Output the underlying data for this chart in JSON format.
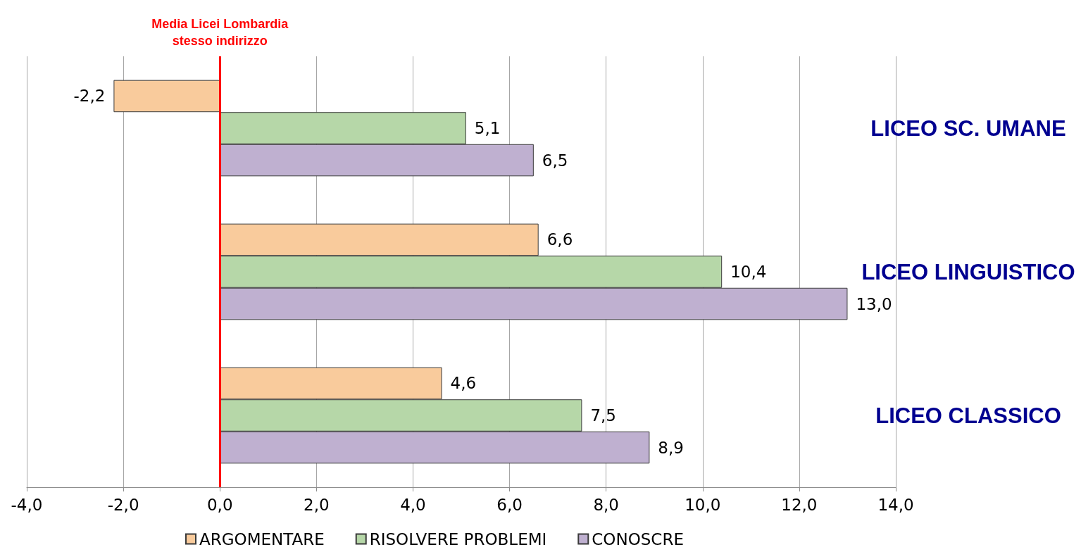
{
  "chart_data": {
    "type": "bar",
    "orientation": "horizontal",
    "categories": [
      "LICEO SC. UMANE",
      "LICEO LINGUISTICO",
      "LICEO CLASSICO"
    ],
    "series": [
      {
        "name": "ARGOMENTARE",
        "color": "#f9cb9c",
        "values": [
          -2.2,
          6.6,
          4.6
        ],
        "value_labels": [
          "-2,2",
          "6,6",
          "4,6"
        ]
      },
      {
        "name": "RISOLVERE PROBLEMI",
        "color": "#b6d7a8",
        "values": [
          5.1,
          10.4,
          7.5
        ],
        "value_labels": [
          "5,1",
          "10,4",
          "7,5"
        ]
      },
      {
        "name": "CONOSCRE",
        "color": "#bfb0d0",
        "values": [
          6.5,
          13.0,
          8.9
        ],
        "value_labels": [
          "6,5",
          "13,0",
          "8,9"
        ]
      }
    ],
    "xlim": [
      -4,
      14
    ],
    "xticks": [
      {
        "value": -4,
        "label": "-4,0"
      },
      {
        "value": -2,
        "label": "-2,0"
      },
      {
        "value": 0,
        "label": "0,0"
      },
      {
        "value": 2,
        "label": "2,0"
      },
      {
        "value": 4,
        "label": "4,0"
      },
      {
        "value": 6,
        "label": "6,0"
      },
      {
        "value": 8,
        "label": "8,0"
      },
      {
        "value": 10,
        "label": "10,0"
      },
      {
        "value": 12,
        "label": "12,0"
      },
      {
        "value": 14,
        "label": "14,0"
      }
    ],
    "grid": "x",
    "legend": "bottom",
    "ref_lines": [
      {
        "axis": "x",
        "value": 0,
        "label": "Media Licei Lombardia\nstesso indirizzo",
        "color": "#ff0000"
      }
    ]
  }
}
